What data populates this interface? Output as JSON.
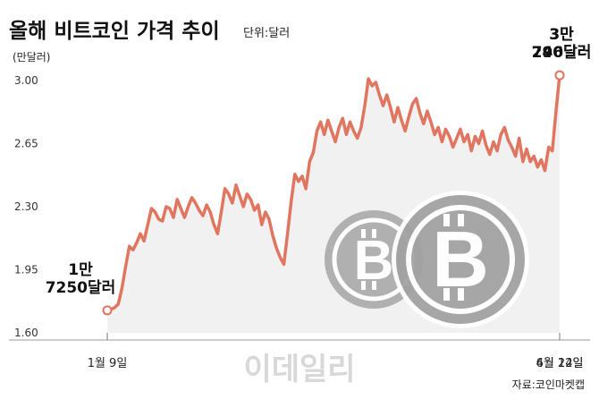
{
  "chart_data": {
    "type": "line",
    "title": "올해 비트코인 가격 추이",
    "unit_note": "단위:달러",
    "ylabel": "(만달러)",
    "ylim": [
      1.6,
      3.0
    ],
    "yticks": [
      "3.00",
      "2.65",
      "2.30",
      "1.95",
      "1.60"
    ],
    "xticks": [
      "1월 9일",
      "4월 14일",
      "6월 22일"
    ],
    "color": "#e07560",
    "source": "자료:코인마켓캡",
    "watermark": "이데일리",
    "annotations": [
      {
        "lines": [
          "1만",
          "7250달러"
        ],
        "value": 1.725
      },
      {
        "lines": [
          "3만",
          "746달러"
        ],
        "value": 3.0746
      },
      {
        "lines": [
          "3만",
          "290달러"
        ],
        "value": 3.029
      }
    ],
    "values": [
      1.725,
      1.73,
      1.74,
      1.76,
      1.85,
      1.97,
      2.08,
      2.06,
      2.1,
      2.15,
      2.11,
      2.2,
      2.29,
      2.27,
      2.23,
      2.22,
      2.3,
      2.29,
      2.24,
      2.34,
      2.29,
      2.24,
      2.3,
      2.35,
      2.32,
      2.28,
      2.25,
      2.31,
      2.27,
      2.2,
      2.15,
      2.27,
      2.4,
      2.37,
      2.32,
      2.42,
      2.36,
      2.3,
      2.37,
      2.34,
      2.28,
      2.31,
      2.2,
      2.27,
      2.23,
      2.14,
      2.07,
      2.02,
      1.98,
      2.15,
      2.33,
      2.48,
      2.44,
      2.47,
      2.4,
      2.55,
      2.6,
      2.72,
      2.77,
      2.7,
      2.78,
      2.72,
      2.66,
      2.74,
      2.79,
      2.7,
      2.77,
      2.72,
      2.68,
      2.74,
      2.86,
      3.01,
      2.97,
      2.99,
      2.92,
      2.86,
      2.92,
      2.85,
      2.77,
      2.85,
      2.78,
      2.72,
      2.8,
      2.87,
      2.9,
      2.82,
      2.76,
      2.83,
      2.77,
      2.7,
      2.74,
      2.66,
      2.73,
      2.69,
      2.63,
      2.68,
      2.73,
      2.66,
      2.7,
      2.61,
      2.69,
      2.65,
      2.72,
      2.64,
      2.59,
      2.66,
      2.61,
      2.7,
      2.74,
      2.67,
      2.63,
      2.58,
      2.68,
      2.55,
      2.62,
      2.55,
      2.58,
      2.52,
      2.56,
      2.5,
      2.63,
      2.61,
      2.83,
      3.029
    ]
  }
}
